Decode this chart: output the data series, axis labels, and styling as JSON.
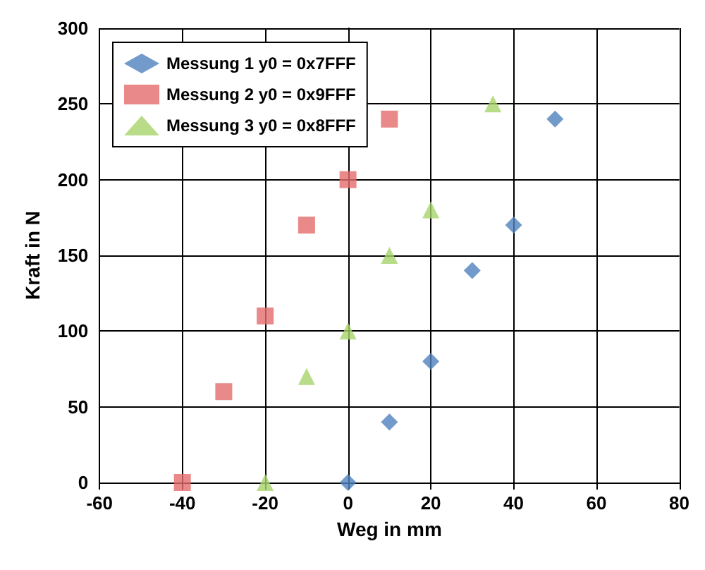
{
  "chart_data": {
    "type": "scatter",
    "xlabel": "Weg in mm",
    "ylabel": "Kraft in N",
    "xlim": [
      -60,
      80
    ],
    "xticks": [
      -60,
      -40,
      -20,
      0,
      20,
      40,
      60,
      80
    ],
    "ylim": [
      0,
      300
    ],
    "yticks": [
      0,
      50,
      100,
      150,
      200,
      250,
      300
    ],
    "grid": true,
    "legend": "top left",
    "series": [
      {
        "name": "Messung 1 y0 = 0x7FFF",
        "color": "#4f81bd",
        "marker": "diamond",
        "x": [
          0,
          10,
          20,
          30,
          40,
          50
        ],
        "values": [
          0,
          40,
          80,
          140,
          170,
          240
        ]
      },
      {
        "name": "Messung 2 y0 = 0x9FFF",
        "color": "#e46c6c",
        "marker": "square",
        "x": [
          -40,
          -30,
          -20,
          -10,
          0,
          10
        ],
        "values": [
          0,
          60,
          110,
          170,
          200,
          240
        ]
      },
      {
        "name": "Messung 3 y0 = 0x8FFF",
        "color": "#a6d36a",
        "marker": "triangle",
        "x": [
          -20,
          -10,
          0,
          10,
          20,
          35
        ],
        "values": [
          0,
          70,
          100,
          150,
          180,
          250
        ]
      }
    ]
  }
}
